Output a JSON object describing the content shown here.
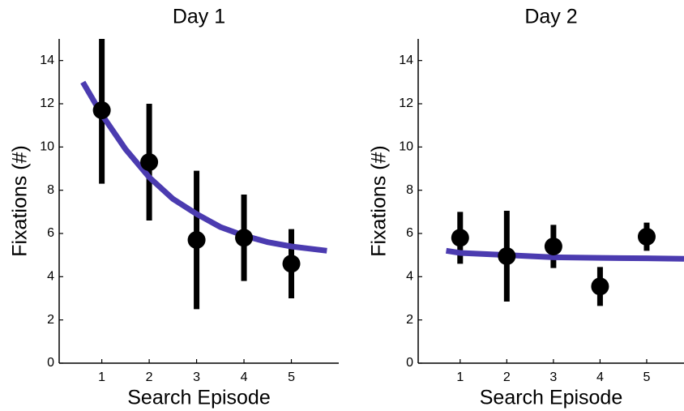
{
  "chart_data": [
    {
      "type": "scatter",
      "title": "Day 1",
      "x_label": "Search Episode",
      "y_label": "Fixations (#)",
      "x": [
        1,
        2,
        3,
        4,
        5
      ],
      "values": [
        11.7,
        9.3,
        5.7,
        5.8,
        4.6
      ],
      "errors": [
        3.4,
        2.7,
        3.2,
        2.0,
        1.6
      ],
      "color": "#000000",
      "fit": {
        "color": "#4b3bb0",
        "x": [
          0.6,
          1,
          1.5,
          2,
          2.5,
          3,
          3.5,
          4,
          4.5,
          5,
          5.75
        ],
        "y": [
          13.0,
          11.5,
          9.9,
          8.6,
          7.6,
          6.9,
          6.3,
          5.9,
          5.6,
          5.4,
          5.2
        ]
      },
      "xlim": [
        0.1,
        6.0
      ],
      "ylim": [
        0,
        15
      ],
      "xticks": [
        1,
        2,
        3,
        4,
        5
      ],
      "yticks": [
        0,
        2,
        4,
        6,
        8,
        10,
        12,
        14
      ]
    },
    {
      "type": "scatter",
      "title": "Day 2",
      "x_label": "Search Episode",
      "y_label": "Fixations (#)",
      "x": [
        1,
        2,
        3,
        4,
        5
      ],
      "values": [
        5.8,
        4.95,
        5.4,
        3.55,
        5.85
      ],
      "errors": [
        1.2,
        2.1,
        1.0,
        0.9,
        0.65
      ],
      "color": "#000000",
      "fit": {
        "color": "#4b3bb0",
        "x": [
          0.7,
          1,
          2,
          3,
          4,
          5,
          5.8
        ],
        "y": [
          5.2,
          5.1,
          5.0,
          4.9,
          4.87,
          4.85,
          4.83
        ]
      },
      "xlim": [
        0.1,
        5.8
      ],
      "ylim": [
        0,
        15
      ],
      "xticks": [
        1,
        2,
        3,
        4,
        5
      ],
      "yticks": [
        0,
        2,
        4,
        6,
        8,
        10,
        12,
        14
      ]
    }
  ]
}
